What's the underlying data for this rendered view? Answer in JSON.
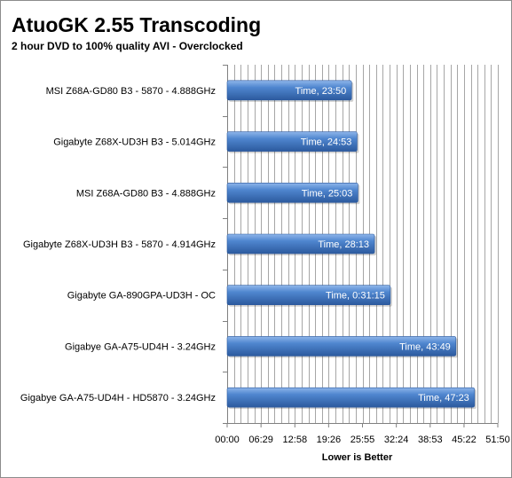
{
  "chart_data": {
    "type": "bar",
    "orientation": "horizontal",
    "title": "AtuoGK 2.55 Transcoding",
    "subtitle": "2 hour DVD to 100% quality AVI - Overclocked",
    "xlabel": "Lower is Better",
    "ylabel": "",
    "categories": [
      "MSI Z68A-GD80 B3 - 5870 - 4.888GHz",
      "Gigabyte Z68X-UD3H B3 - 5.014GHz",
      "MSI Z68A-GD80 B3 - 4.888GHz",
      "Gigabyte Z68X-UD3H B3 - 5870 - 4.914GHz",
      "Gigabyte GA-890GPA-UD3H - OC",
      "Gigabye GA-A75-UD4H - 3.24GHz",
      "Gigabye GA-A75-UD4H - HD5870 - 3.24GHz"
    ],
    "values_seconds": [
      1430,
      1493,
      1503,
      1693,
      1875,
      2629,
      2843
    ],
    "data_labels": [
      "Time, 23:50",
      "Time, 24:53",
      "Time, 25:03",
      "Time, 28:13",
      "Time, 0:31:15",
      "Time, 43:49",
      "Time, 47:23"
    ],
    "xlim_seconds": [
      0,
      3110
    ],
    "tick_values_seconds": [
      0,
      389,
      778,
      1166,
      1555,
      1944,
      2333,
      2722,
      3110
    ],
    "tick_labels": [
      "00:00",
      "06:29",
      "12:58",
      "19:26",
      "25:55",
      "32:24",
      "38:53",
      "45:22",
      "51:50"
    ],
    "minor_grid_seconds": 77.75,
    "grid": true,
    "legend": false,
    "colors": {
      "bar_dark": "#2c5a9e",
      "bar_mid": "#4f86cf",
      "bar_light": "#8fb6ea",
      "grid": "#a6a6a6",
      "axis": "#808080",
      "text": "#000000"
    }
  }
}
